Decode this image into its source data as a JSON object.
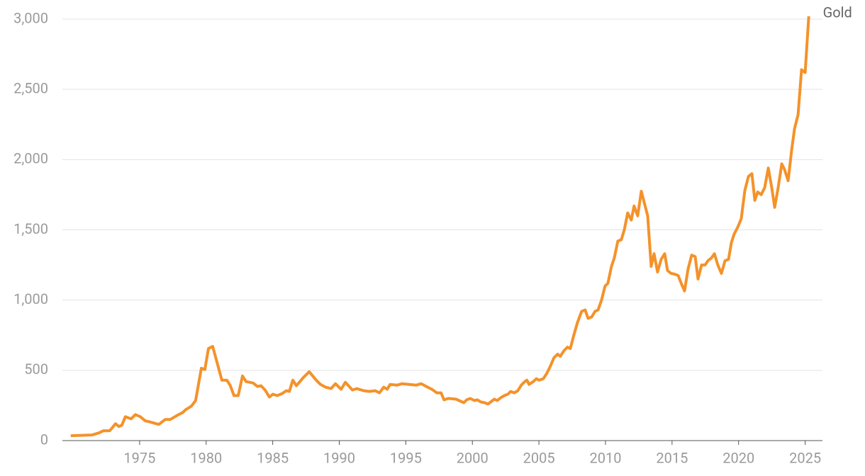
{
  "chart_data": {
    "type": "line",
    "x": [
      1969.83,
      1971.43,
      1971.96,
      1972.28,
      1972.76,
      1973.19,
      1973.45,
      1973.67,
      1973.93,
      1974.36,
      1974.68,
      1975.05,
      1975.43,
      1975.69,
      1976.44,
      1976.92,
      1977.29,
      1977.93,
      1978.25,
      1978.46,
      1978.89,
      1979.21,
      1979.64,
      1979.9,
      1980.17,
      1980.49,
      1981.18,
      1981.56,
      1981.82,
      1982.09,
      1982.41,
      1982.73,
      1983.0,
      1983.53,
      1983.85,
      1984.12,
      1984.43,
      1984.75,
      1985.02,
      1985.34,
      1985.71,
      1986.03,
      1986.25,
      1986.51,
      1986.78,
      1987.31,
      1987.74,
      1988.27,
      1988.59,
      1988.97,
      1989.39,
      1989.71,
      1990.14,
      1990.46,
      1990.99,
      1991.31,
      1991.84,
      1992.27,
      1992.7,
      1993.02,
      1993.34,
      1993.6,
      1993.82,
      1994.35,
      1994.72,
      1995.26,
      1995.79,
      1996.16,
      1996.54,
      1996.96,
      1997.33,
      1997.65,
      1997.87,
      1998.19,
      1998.77,
      1999.36,
      1999.57,
      1999.84,
      2000.16,
      2000.37,
      2000.64,
      2000.91,
      2001.17,
      2001.38,
      2001.65,
      2001.87,
      2002.13,
      2002.4,
      2002.67,
      2002.88,
      2003.14,
      2003.41,
      2003.68,
      2003.94,
      2004.1,
      2004.26,
      2004.58,
      2004.8,
      2005.01,
      2005.33,
      2005.6,
      2005.86,
      2006.13,
      2006.4,
      2006.61,
      2006.88,
      2007.14,
      2007.36,
      2007.62,
      2007.89,
      2008.21,
      2008.48,
      2008.69,
      2008.96,
      2009.22,
      2009.44,
      2009.7,
      2009.97,
      2010.18,
      2010.45,
      2010.66,
      2010.93,
      2011.19,
      2011.41,
      2011.67,
      2011.94,
      2012.15,
      2012.42,
      2012.69,
      2013.17,
      2013.43,
      2013.65,
      2013.91,
      2014.18,
      2014.45,
      2014.66,
      2014.93,
      2015.19,
      2015.46,
      2015.73,
      2015.94,
      2016.2,
      2016.47,
      2016.74,
      2016.95,
      2017.22,
      2017.48,
      2017.7,
      2017.96,
      2018.18,
      2018.44,
      2018.71,
      2018.98,
      2019.24,
      2019.46,
      2019.67,
      2019.94,
      2020.2,
      2020.47,
      2020.74,
      2021.0,
      2021.22,
      2021.43,
      2021.7,
      2021.96,
      2022.23,
      2022.49,
      2022.71,
      2022.97,
      2023.24,
      2023.45,
      2023.72,
      2023.99,
      2024.2,
      2024.47,
      2024.73,
      2025.0,
      2025.27
    ],
    "series": [
      {
        "name": "Gold",
        "color": "#f4922a",
        "values": [
          35,
          40,
          55,
          70,
          70,
          120,
          100,
          110,
          170,
          155,
          185,
          170,
          140,
          135,
          115,
          150,
          150,
          185,
          200,
          220,
          245,
          285,
          515,
          505,
          655,
          670,
          430,
          430,
          390,
          320,
          320,
          460,
          420,
          410,
          385,
          390,
          360,
          310,
          330,
          320,
          335,
          355,
          350,
          430,
          390,
          450,
          490,
          430,
          400,
          380,
          370,
          405,
          365,
          415,
          360,
          370,
          355,
          350,
          355,
          340,
          380,
          365,
          400,
          395,
          405,
          400,
          395,
          405,
          385,
          365,
          340,
          340,
          290,
          300,
          295,
          270,
          290,
          300,
          285,
          290,
          275,
          270,
          260,
          275,
          295,
          285,
          305,
          320,
          330,
          350,
          340,
          355,
          395,
          420,
          430,
          400,
          420,
          440,
          430,
          440,
          480,
          530,
          590,
          615,
          600,
          640,
          665,
          655,
          750,
          840,
          920,
          930,
          870,
          880,
          920,
          930,
          1000,
          1100,
          1120,
          1240,
          1300,
          1420,
          1430,
          1500,
          1620,
          1570,
          1670,
          1600,
          1775,
          1600,
          1240,
          1330,
          1200,
          1290,
          1330,
          1210,
          1190,
          1185,
          1175,
          1110,
          1065,
          1220,
          1320,
          1310,
          1150,
          1250,
          1250,
          1280,
          1300,
          1330,
          1250,
          1190,
          1280,
          1290,
          1410,
          1470,
          1520,
          1580,
          1780,
          1880,
          1900,
          1710,
          1770,
          1750,
          1800,
          1940,
          1800,
          1660,
          1800,
          1970,
          1930,
          1850,
          2070,
          2220,
          2320,
          2640,
          2620,
          3020
        ]
      }
    ],
    "xlim": [
      1969.2,
      2026.3
    ],
    "xticks": [
      1975,
      1980,
      1985,
      1990,
      1995,
      2000,
      2005,
      2010,
      2015,
      2020,
      2025
    ],
    "ylim": [
      0,
      3000
    ],
    "yticks": [
      0,
      500,
      {
        "value": 1000,
        "label": "1,000"
      },
      {
        "value": 1500,
        "label": "1,500"
      },
      {
        "value": 2000,
        "label": "2,000"
      },
      {
        "value": 2500,
        "label": "2,500"
      },
      {
        "value": 3000,
        "label": "3,000"
      }
    ],
    "grid": true
  }
}
